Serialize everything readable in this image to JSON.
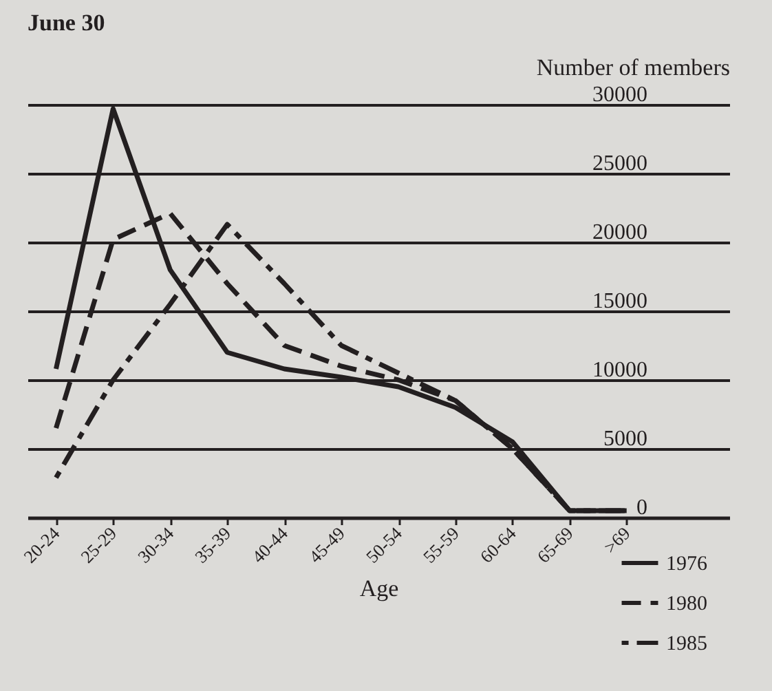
{
  "chart_data": {
    "type": "line",
    "title": "June 30",
    "ylabel": "Number of members",
    "xlabel": "Age",
    "categories": [
      "20-24",
      "25-29",
      "30-34",
      "35-39",
      "40-44",
      "45-49",
      "50-54",
      "55-59",
      "60-64",
      "65-69",
      ">69"
    ],
    "series": [
      {
        "name": "1976",
        "color": "#231f20",
        "line_style": "solid",
        "values": [
          10800,
          29700,
          18000,
          12000,
          10800,
          10200,
          9500,
          8000,
          5500,
          500,
          500
        ]
      },
      {
        "name": "1980",
        "color": "#231f20",
        "line_style": "dashed",
        "values": [
          6500,
          20200,
          22100,
          17000,
          12500,
          11000,
          10000,
          8500,
          5000,
          500,
          500
        ]
      },
      {
        "name": "1985",
        "color": "#231f20",
        "line_style": "dashdot",
        "values": [
          2900,
          10000,
          15500,
          21300,
          17000,
          12500,
          10500,
          8500,
          5000,
          500,
          500
        ]
      }
    ],
    "ylim": [
      0,
      30000
    ],
    "yticks": [
      0,
      5000,
      10000,
      15000,
      20000,
      25000,
      30000
    ],
    "grid": "y",
    "legend": "bottom right",
    "marker": "none"
  }
}
